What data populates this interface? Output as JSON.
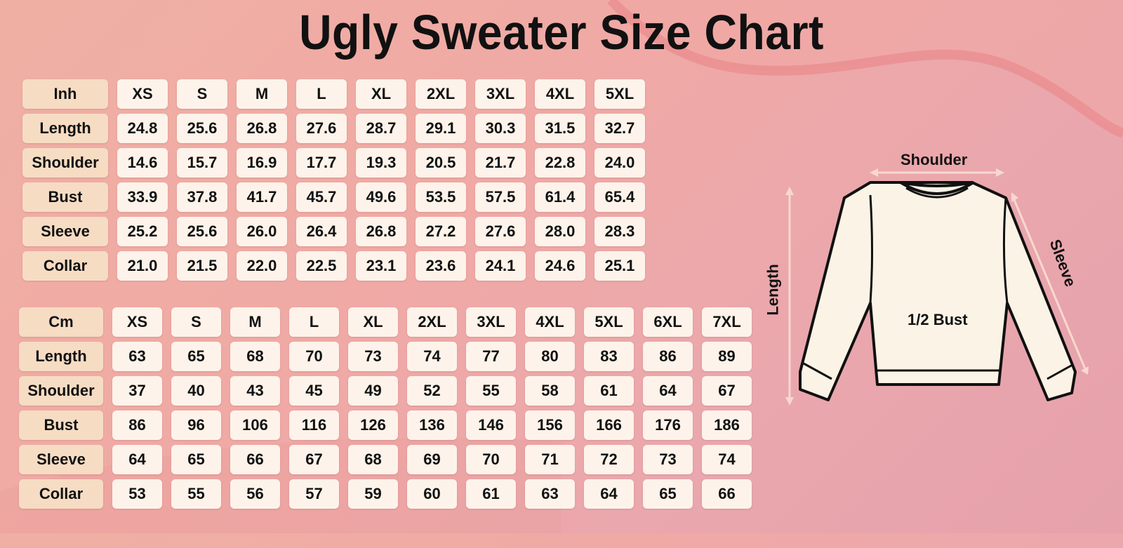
{
  "title": "Ugly Sweater Size Chart",
  "inch_table": {
    "unit_label": "Inh",
    "sizes": [
      "XS",
      "S",
      "M",
      "L",
      "XL",
      "2XL",
      "3XL",
      "4XL",
      "5XL"
    ],
    "rows": [
      {
        "label": "Length",
        "values": [
          "24.8",
          "25.6",
          "26.8",
          "27.6",
          "28.7",
          "29.1",
          "30.3",
          "31.5",
          "32.7"
        ]
      },
      {
        "label": "Shoulder",
        "values": [
          "14.6",
          "15.7",
          "16.9",
          "17.7",
          "19.3",
          "20.5",
          "21.7",
          "22.8",
          "24.0"
        ]
      },
      {
        "label": "Bust",
        "values": [
          "33.9",
          "37.8",
          "41.7",
          "45.7",
          "49.6",
          "53.5",
          "57.5",
          "61.4",
          "65.4"
        ]
      },
      {
        "label": "Sleeve",
        "values": [
          "25.2",
          "25.6",
          "26.0",
          "26.4",
          "26.8",
          "27.2",
          "27.6",
          "28.0",
          "28.3"
        ]
      },
      {
        "label": "Collar",
        "values": [
          "21.0",
          "21.5",
          "22.0",
          "22.5",
          "23.1",
          "23.6",
          "24.1",
          "24.6",
          "25.1"
        ]
      }
    ]
  },
  "cm_table": {
    "unit_label": "Cm",
    "sizes": [
      "XS",
      "S",
      "M",
      "L",
      "XL",
      "2XL",
      "3XL",
      "4XL",
      "5XL",
      "6XL",
      "7XL"
    ],
    "rows": [
      {
        "label": "Length",
        "values": [
          "63",
          "65",
          "68",
          "70",
          "73",
          "74",
          "77",
          "80",
          "83",
          "86",
          "89"
        ]
      },
      {
        "label": "Shoulder",
        "values": [
          "37",
          "40",
          "43",
          "45",
          "49",
          "52",
          "55",
          "58",
          "61",
          "64",
          "67"
        ]
      },
      {
        "label": "Bust",
        "values": [
          "86",
          "96",
          "106",
          "116",
          "126",
          "136",
          "146",
          "156",
          "166",
          "176",
          "186"
        ]
      },
      {
        "label": "Sleeve",
        "values": [
          "64",
          "65",
          "66",
          "67",
          "68",
          "69",
          "70",
          "71",
          "72",
          "73",
          "74"
        ]
      },
      {
        "label": "Collar",
        "values": [
          "53",
          "55",
          "56",
          "57",
          "59",
          "60",
          "61",
          "63",
          "64",
          "65",
          "66"
        ]
      }
    ]
  },
  "diagram": {
    "shoulder_label": "Shoulder",
    "length_label": "Length",
    "sleeve_label": "Sleeve",
    "bust_label": "1/2 Bust"
  },
  "colors": {
    "background": "#efa9a6",
    "header_cell": "#f6dcc3",
    "value_cell": "#fdf3ea",
    "sweater_fill": "#fbf3e6",
    "arrow": "#f7d8cf"
  }
}
